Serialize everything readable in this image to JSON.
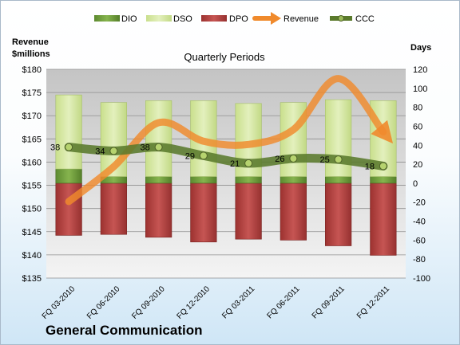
{
  "company": "General Communication",
  "chart_data": {
    "type": "bar",
    "title": "Quarterly Periods",
    "left_axis_label": [
      "Revenue",
      "$millions"
    ],
    "right_axis_label": "Days",
    "categories": [
      "FQ 03-2010",
      "FQ 06-2010",
      "FQ 09-2010",
      "FQ 12-2010",
      "FQ 03-2011",
      "FQ 06-2011",
      "FQ 09-2011",
      "FQ 12-2011"
    ],
    "left_axis": {
      "min": 135,
      "max": 180,
      "step": 5,
      "tick_prefix": "$"
    },
    "right_axis": {
      "min": -100,
      "max": 120,
      "step": 20
    },
    "series": [
      {
        "name": "DIO",
        "type": "stacked-bar",
        "axis": "right",
        "color": "#70a040",
        "values": [
          15,
          7,
          7,
          7,
          7,
          7,
          7,
          7
        ]
      },
      {
        "name": "DSO",
        "type": "stacked-bar",
        "axis": "right",
        "color": "#d7e9a4",
        "values": [
          78,
          78,
          80,
          80,
          77,
          78,
          81,
          80
        ]
      },
      {
        "name": "DPO",
        "type": "stacked-bar-negative",
        "axis": "right",
        "color": "#c0504d",
        "values": [
          -55,
          -54,
          -57,
          -62,
          -59,
          -60,
          -66,
          -76
        ]
      },
      {
        "name": "Revenue",
        "type": "line-arrow",
        "axis": "left",
        "color": "#f08a2c",
        "values": [
          151.5,
          159.0,
          168.5,
          164.5,
          163.8,
          167.0,
          178.0,
          166.5
        ]
      },
      {
        "name": "CCC",
        "type": "line-markers",
        "axis": "right",
        "color": "#5a7a2c",
        "values": [
          38,
          34,
          38,
          29,
          21,
          26,
          25,
          18
        ],
        "labels": [
          "38",
          "34",
          "38",
          "29",
          "21",
          "26",
          "25",
          "18"
        ]
      }
    ],
    "legend_position": "top",
    "grid": true
  }
}
